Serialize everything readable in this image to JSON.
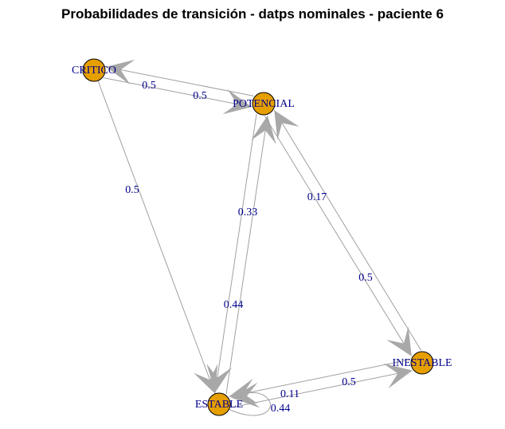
{
  "title": "Probabilidades de transición - datps nominales - paciente 6",
  "colors": {
    "node_fill": "#E69F00",
    "label_color": "#00008B",
    "edge_color": "#A0A0A0"
  },
  "nodes": [
    {
      "id": "critico",
      "label": "CRITICO"
    },
    {
      "id": "potencial",
      "label": "POTENCIAL"
    },
    {
      "id": "estable",
      "label": "ESTABLE"
    },
    {
      "id": "inestable",
      "label": "INESTABLE"
    }
  ],
  "edges": [
    {
      "from": "critico",
      "to": "potencial",
      "label": "0.5"
    },
    {
      "from": "potencial",
      "to": "critico",
      "label": "0.5"
    },
    {
      "from": "critico",
      "to": "estable",
      "label": "0.5"
    },
    {
      "from": "potencial",
      "to": "estable",
      "label": "0.33"
    },
    {
      "from": "estable",
      "to": "potencial",
      "label": "0.44"
    },
    {
      "from": "potencial",
      "to": "inestable",
      "label": "0.17"
    },
    {
      "from": "inestable",
      "to": "potencial",
      "label": "0.5"
    },
    {
      "from": "estable",
      "to": "inestable",
      "label": "0.11"
    },
    {
      "from": "inestable",
      "to": "estable",
      "label": "0.5"
    },
    {
      "from": "estable",
      "to": "estable",
      "label": "0.44"
    }
  ]
}
